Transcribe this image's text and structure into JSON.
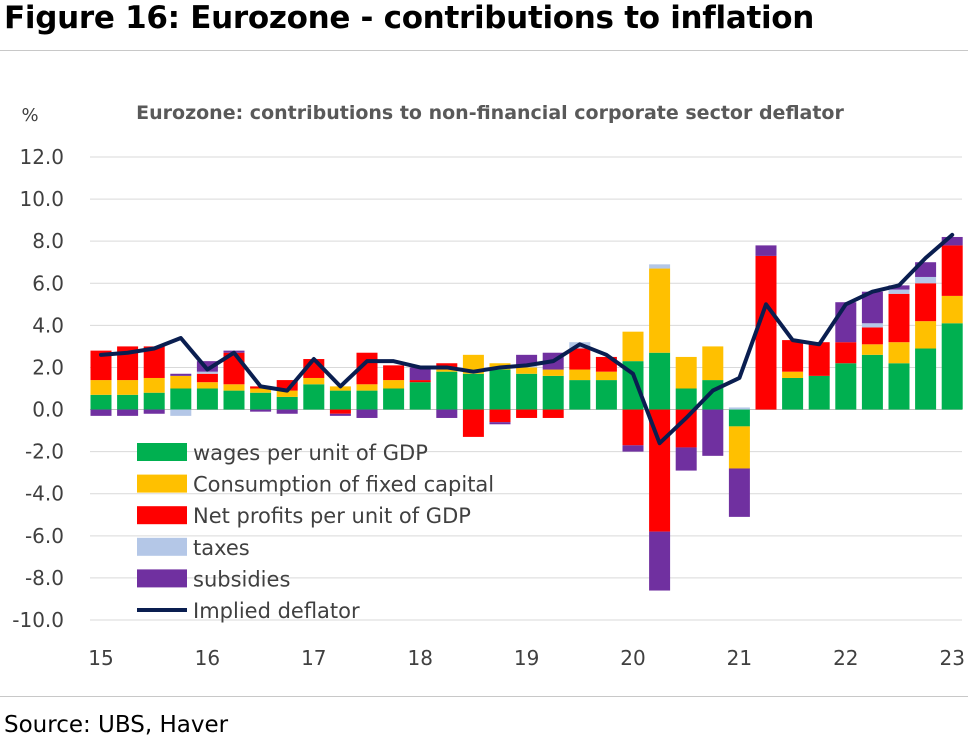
{
  "figure_title": "Figure 16: Eurozone - contributions to inflation",
  "source": "Source: UBS, Haver",
  "chart_data": {
    "type": "bar",
    "stacked": true,
    "title": "Eurozone: contributions to non-financial corporate sector deflator",
    "ylabel": "%",
    "xlabel": "",
    "ylim": [
      -10,
      12
    ],
    "yticks": [
      "12.0",
      "10.0",
      "8.0",
      "6.0",
      "4.0",
      "2.0",
      "0.0",
      "-2.0",
      "-4.0",
      "-6.0",
      "-8.0",
      "-10.0"
    ],
    "xticks": [
      "15",
      "16",
      "17",
      "18",
      "19",
      "20",
      "21",
      "22",
      "23"
    ],
    "grid": true,
    "legend_position": "bottom-left inside",
    "categories": [
      "15Q1",
      "15Q2",
      "15Q3",
      "15Q4",
      "16Q1",
      "16Q2",
      "16Q3",
      "16Q4",
      "17Q1",
      "17Q2",
      "17Q3",
      "17Q4",
      "18Q1",
      "18Q2",
      "18Q3",
      "18Q4",
      "19Q1",
      "19Q2",
      "19Q3",
      "19Q4",
      "20Q1",
      "20Q2",
      "20Q3",
      "20Q4",
      "21Q1",
      "21Q2",
      "21Q3",
      "21Q4",
      "22Q1",
      "22Q2",
      "22Q3",
      "22Q4",
      "23Q1"
    ],
    "series": [
      {
        "name": "wages per unit of GDP",
        "color": "#00B050",
        "values": [
          0.7,
          0.7,
          0.8,
          1.0,
          1.0,
          0.9,
          0.8,
          0.6,
          1.2,
          0.9,
          0.9,
          1.0,
          1.3,
          1.8,
          1.7,
          1.9,
          1.7,
          1.6,
          1.4,
          1.4,
          2.3,
          2.7,
          1.0,
          1.4,
          -0.8,
          0.0,
          1.5,
          1.6,
          2.2,
          2.6,
          2.2,
          2.9,
          4.1
        ]
      },
      {
        "name": "Consumption of fixed capital",
        "color": "#FFC000",
        "values": [
          0.7,
          0.7,
          0.7,
          0.6,
          0.3,
          0.3,
          0.2,
          0.3,
          0.3,
          0.2,
          0.3,
          0.4,
          0.0,
          0.1,
          0.9,
          0.3,
          0.3,
          0.3,
          0.5,
          0.4,
          1.4,
          4.0,
          1.5,
          1.6,
          -2.0,
          0.0,
          0.3,
          0.0,
          0.0,
          0.5,
          1.0,
          1.3,
          1.3
        ]
      },
      {
        "name": "Net profits per unit of GDP",
        "color": "#FF0000",
        "values": [
          1.4,
          1.6,
          1.5,
          0.0,
          0.4,
          1.5,
          0.1,
          0.5,
          0.9,
          -0.2,
          1.5,
          0.7,
          0.1,
          0.3,
          -1.3,
          -0.6,
          -0.4,
          -0.4,
          1.0,
          0.7,
          -1.7,
          -5.8,
          -1.8,
          0.0,
          0.0,
          7.3,
          1.5,
          1.6,
          1.0,
          0.8,
          2.3,
          1.8,
          2.4
        ]
      },
      {
        "name": "taxes",
        "color": "#B4C7E7",
        "values": [
          0.0,
          0.0,
          0.0,
          -0.3,
          0.1,
          0.0,
          0.0,
          0.0,
          0.0,
          0.0,
          0.0,
          0.0,
          0.0,
          0.0,
          0.0,
          0.0,
          0.1,
          0.0,
          0.3,
          0.0,
          0.0,
          0.2,
          0.0,
          0.0,
          0.1,
          0.0,
          0.0,
          0.0,
          0.0,
          0.2,
          0.2,
          0.3,
          0.0
        ]
      },
      {
        "name": "subsidies",
        "color": "#7030A0",
        "values": [
          -0.3,
          -0.3,
          -0.2,
          0.1,
          0.5,
          0.1,
          -0.1,
          -0.2,
          0.0,
          -0.1,
          -0.4,
          0.0,
          0.6,
          -0.4,
          0.0,
          -0.1,
          0.5,
          0.8,
          0.0,
          0.0,
          -0.3,
          -2.8,
          -1.1,
          -2.2,
          -2.3,
          0.5,
          0.0,
          0.0,
          1.9,
          1.5,
          0.2,
          0.7,
          0.4
        ]
      },
      {
        "name": "Implied deflator",
        "color": "#0A1E50",
        "type": "line",
        "values": [
          2.6,
          2.7,
          2.9,
          3.4,
          1.9,
          2.7,
          1.1,
          0.9,
          2.4,
          1.1,
          2.3,
          2.3,
          2.0,
          2.0,
          1.8,
          2.0,
          2.1,
          2.3,
          3.1,
          2.6,
          1.7,
          -1.6,
          -0.4,
          0.9,
          1.5,
          5.0,
          3.3,
          3.1,
          5.0,
          5.6,
          5.9,
          7.2,
          8.3
        ]
      }
    ]
  }
}
